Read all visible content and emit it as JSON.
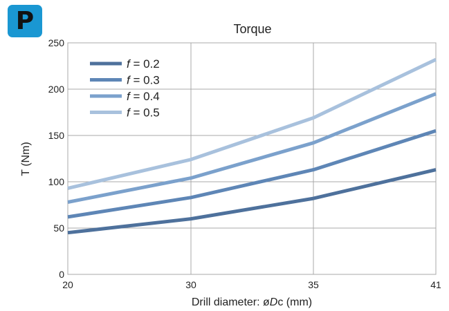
{
  "badge": {
    "label": "P"
  },
  "chart_data": {
    "type": "line",
    "title": "Torque",
    "xlabel_prefix": "Drill diameter: ",
    "xlabel_var": "ø",
    "xlabel_var_italic": "D",
    "xlabel_var_sub": "c",
    "xlabel_suffix": " (mm)",
    "ylabel": "T (Nm)",
    "categories": [
      "20",
      "30",
      "35",
      "41"
    ],
    "ylim": [
      0,
      250
    ],
    "yticks": [
      "0",
      "50",
      "100",
      "150",
      "200",
      "250"
    ],
    "grid": true,
    "legend_position": "top-left",
    "legend_var": "f",
    "series": [
      {
        "name": "= 0.2",
        "values": [
          45,
          60,
          82,
          113
        ],
        "color": "#4e719c"
      },
      {
        "name": "= 0.3",
        "values": [
          62,
          83,
          113,
          155
        ],
        "color": "#5e86b6"
      },
      {
        "name": "= 0.4",
        "values": [
          78,
          104,
          142,
          195
        ],
        "color": "#7ba1cc"
      },
      {
        "name": "= 0.5",
        "values": [
          93,
          124,
          169,
          232
        ],
        "color": "#a8c1dd"
      }
    ]
  }
}
